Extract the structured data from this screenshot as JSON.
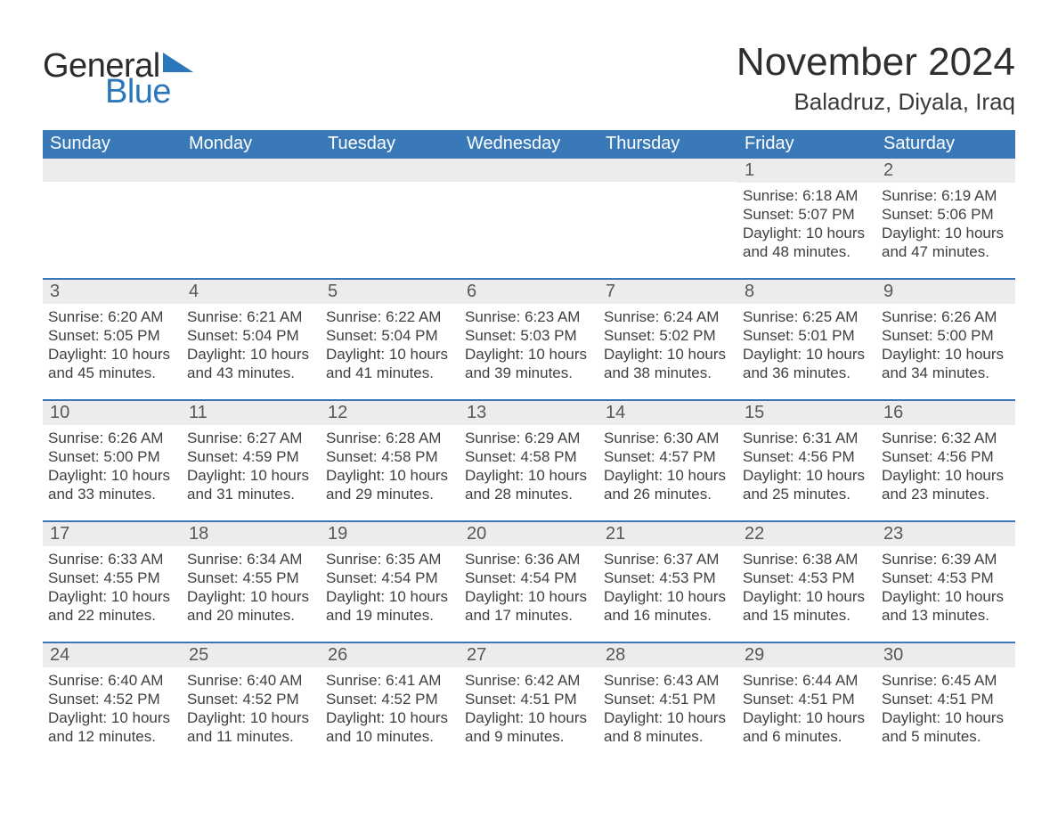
{
  "brand": {
    "word1": "General",
    "word2": "Blue",
    "text_color": "#2b2b2b",
    "accent_color": "#2b77bb"
  },
  "header": {
    "month_title": "November 2024",
    "location": "Baladruz, Diyala, Iraq",
    "title_color": "#2f2f2f",
    "title_fontsize": 44,
    "location_fontsize": 26
  },
  "styling": {
    "header_row_bg": "#3a79b7",
    "header_row_text": "#ffffff",
    "week_divider_color": "#3a79b7",
    "daynum_bg": "#ececec",
    "daynum_color": "#585858",
    "body_text_color": "#3f3f3f",
    "page_bg": "#ffffff",
    "dow_fontsize": 20,
    "daynum_fontsize": 20,
    "body_fontsize": 17
  },
  "days_of_week": [
    "Sunday",
    "Monday",
    "Tuesday",
    "Wednesday",
    "Thursday",
    "Friday",
    "Saturday"
  ],
  "weeks": [
    [
      {
        "empty": true
      },
      {
        "empty": true
      },
      {
        "empty": true
      },
      {
        "empty": true
      },
      {
        "empty": true
      },
      {
        "num": "1",
        "sunrise": "Sunrise: 6:18 AM",
        "sunset": "Sunset: 5:07 PM",
        "daylight": "Daylight: 10 hours and 48 minutes."
      },
      {
        "num": "2",
        "sunrise": "Sunrise: 6:19 AM",
        "sunset": "Sunset: 5:06 PM",
        "daylight": "Daylight: 10 hours and 47 minutes."
      }
    ],
    [
      {
        "num": "3",
        "sunrise": "Sunrise: 6:20 AM",
        "sunset": "Sunset: 5:05 PM",
        "daylight": "Daylight: 10 hours and 45 minutes."
      },
      {
        "num": "4",
        "sunrise": "Sunrise: 6:21 AM",
        "sunset": "Sunset: 5:04 PM",
        "daylight": "Daylight: 10 hours and 43 minutes."
      },
      {
        "num": "5",
        "sunrise": "Sunrise: 6:22 AM",
        "sunset": "Sunset: 5:04 PM",
        "daylight": "Daylight: 10 hours and 41 minutes."
      },
      {
        "num": "6",
        "sunrise": "Sunrise: 6:23 AM",
        "sunset": "Sunset: 5:03 PM",
        "daylight": "Daylight: 10 hours and 39 minutes."
      },
      {
        "num": "7",
        "sunrise": "Sunrise: 6:24 AM",
        "sunset": "Sunset: 5:02 PM",
        "daylight": "Daylight: 10 hours and 38 minutes."
      },
      {
        "num": "8",
        "sunrise": "Sunrise: 6:25 AM",
        "sunset": "Sunset: 5:01 PM",
        "daylight": "Daylight: 10 hours and 36 minutes."
      },
      {
        "num": "9",
        "sunrise": "Sunrise: 6:26 AM",
        "sunset": "Sunset: 5:00 PM",
        "daylight": "Daylight: 10 hours and 34 minutes."
      }
    ],
    [
      {
        "num": "10",
        "sunrise": "Sunrise: 6:26 AM",
        "sunset": "Sunset: 5:00 PM",
        "daylight": "Daylight: 10 hours and 33 minutes."
      },
      {
        "num": "11",
        "sunrise": "Sunrise: 6:27 AM",
        "sunset": "Sunset: 4:59 PM",
        "daylight": "Daylight: 10 hours and 31 minutes."
      },
      {
        "num": "12",
        "sunrise": "Sunrise: 6:28 AM",
        "sunset": "Sunset: 4:58 PM",
        "daylight": "Daylight: 10 hours and 29 minutes."
      },
      {
        "num": "13",
        "sunrise": "Sunrise: 6:29 AM",
        "sunset": "Sunset: 4:58 PM",
        "daylight": "Daylight: 10 hours and 28 minutes."
      },
      {
        "num": "14",
        "sunrise": "Sunrise: 6:30 AM",
        "sunset": "Sunset: 4:57 PM",
        "daylight": "Daylight: 10 hours and 26 minutes."
      },
      {
        "num": "15",
        "sunrise": "Sunrise: 6:31 AM",
        "sunset": "Sunset: 4:56 PM",
        "daylight": "Daylight: 10 hours and 25 minutes."
      },
      {
        "num": "16",
        "sunrise": "Sunrise: 6:32 AM",
        "sunset": "Sunset: 4:56 PM",
        "daylight": "Daylight: 10 hours and 23 minutes."
      }
    ],
    [
      {
        "num": "17",
        "sunrise": "Sunrise: 6:33 AM",
        "sunset": "Sunset: 4:55 PM",
        "daylight": "Daylight: 10 hours and 22 minutes."
      },
      {
        "num": "18",
        "sunrise": "Sunrise: 6:34 AM",
        "sunset": "Sunset: 4:55 PM",
        "daylight": "Daylight: 10 hours and 20 minutes."
      },
      {
        "num": "19",
        "sunrise": "Sunrise: 6:35 AM",
        "sunset": "Sunset: 4:54 PM",
        "daylight": "Daylight: 10 hours and 19 minutes."
      },
      {
        "num": "20",
        "sunrise": "Sunrise: 6:36 AM",
        "sunset": "Sunset: 4:54 PM",
        "daylight": "Daylight: 10 hours and 17 minutes."
      },
      {
        "num": "21",
        "sunrise": "Sunrise: 6:37 AM",
        "sunset": "Sunset: 4:53 PM",
        "daylight": "Daylight: 10 hours and 16 minutes."
      },
      {
        "num": "22",
        "sunrise": "Sunrise: 6:38 AM",
        "sunset": "Sunset: 4:53 PM",
        "daylight": "Daylight: 10 hours and 15 minutes."
      },
      {
        "num": "23",
        "sunrise": "Sunrise: 6:39 AM",
        "sunset": "Sunset: 4:53 PM",
        "daylight": "Daylight: 10 hours and 13 minutes."
      }
    ],
    [
      {
        "num": "24",
        "sunrise": "Sunrise: 6:40 AM",
        "sunset": "Sunset: 4:52 PM",
        "daylight": "Daylight: 10 hours and 12 minutes."
      },
      {
        "num": "25",
        "sunrise": "Sunrise: 6:40 AM",
        "sunset": "Sunset: 4:52 PM",
        "daylight": "Daylight: 10 hours and 11 minutes."
      },
      {
        "num": "26",
        "sunrise": "Sunrise: 6:41 AM",
        "sunset": "Sunset: 4:52 PM",
        "daylight": "Daylight: 10 hours and 10 minutes."
      },
      {
        "num": "27",
        "sunrise": "Sunrise: 6:42 AM",
        "sunset": "Sunset: 4:51 PM",
        "daylight": "Daylight: 10 hours and 9 minutes."
      },
      {
        "num": "28",
        "sunrise": "Sunrise: 6:43 AM",
        "sunset": "Sunset: 4:51 PM",
        "daylight": "Daylight: 10 hours and 8 minutes."
      },
      {
        "num": "29",
        "sunrise": "Sunrise: 6:44 AM",
        "sunset": "Sunset: 4:51 PM",
        "daylight": "Daylight: 10 hours and 6 minutes."
      },
      {
        "num": "30",
        "sunrise": "Sunrise: 6:45 AM",
        "sunset": "Sunset: 4:51 PM",
        "daylight": "Daylight: 10 hours and 5 minutes."
      }
    ]
  ]
}
